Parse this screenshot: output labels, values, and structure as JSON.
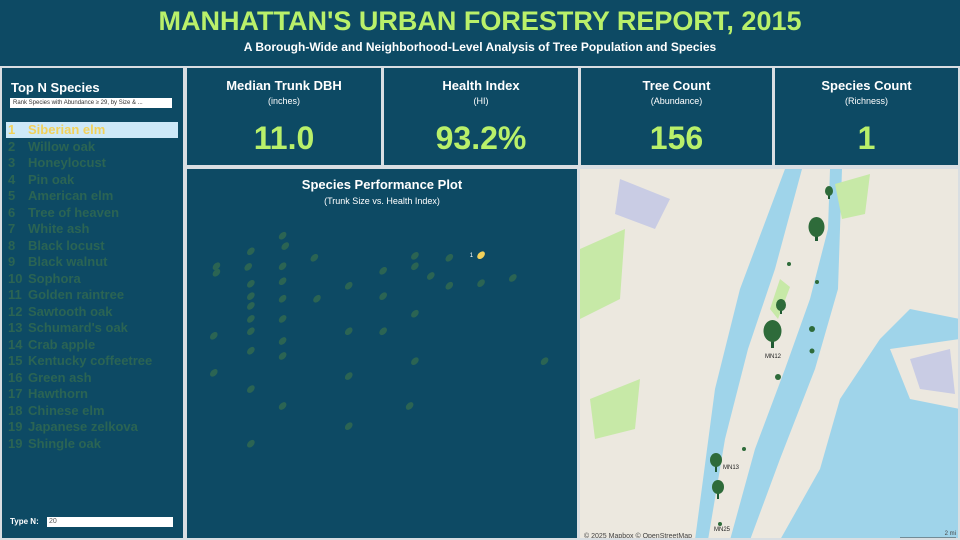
{
  "header": {
    "title": "MANHATTAN'S URBAN FORESTRY REPORT, 2015",
    "subtitle": "A Borough-Wide and Neighborhood-Level Analysis of Tree Population and Species"
  },
  "sidebar": {
    "title": "Top N Species",
    "dropdown": "Rank Species with Abundance ≥ 29, by Size & ...",
    "species": [
      {
        "rank": "1",
        "name": "Siberian elm"
      },
      {
        "rank": "2",
        "name": "Willow oak"
      },
      {
        "rank": "3",
        "name": "Honeylocust"
      },
      {
        "rank": "4",
        "name": "Pin oak"
      },
      {
        "rank": "5",
        "name": "American elm"
      },
      {
        "rank": "6",
        "name": "Tree of heaven"
      },
      {
        "rank": "7",
        "name": "White ash"
      },
      {
        "rank": "8",
        "name": "Black locust"
      },
      {
        "rank": "9",
        "name": "Black walnut"
      },
      {
        "rank": "10",
        "name": "Sophora"
      },
      {
        "rank": "11",
        "name": "Golden raintree"
      },
      {
        "rank": "12",
        "name": "Sawtooth oak"
      },
      {
        "rank": "13",
        "name": "Schumard's oak"
      },
      {
        "rank": "14",
        "name": "Crab apple"
      },
      {
        "rank": "15",
        "name": "Kentucky coffeetree"
      },
      {
        "rank": "16",
        "name": "Green ash"
      },
      {
        "rank": "17",
        "name": "Hawthorn"
      },
      {
        "rank": "18",
        "name": "Chinese elm"
      },
      {
        "rank": "19",
        "name": "Japanese zelkova"
      },
      {
        "rank": "19",
        "name": "Shingle oak"
      }
    ],
    "input_label": "Type N:",
    "input_value": "20"
  },
  "kpis": [
    {
      "title": "Median Trunk DBH",
      "subtitle": "(inches)",
      "value": "11.0"
    },
    {
      "title": "Health Index",
      "subtitle": "(HI)",
      "value": "93.2%"
    },
    {
      "title": "Tree Count",
      "subtitle": "(Abundance)",
      "value": "156"
    },
    {
      "title": "Species Count",
      "subtitle": "(Richness)",
      "value": "1"
    }
  ],
  "chart_data": {
    "type": "scatter",
    "title": "Species Performance Plot",
    "subtitle": "(Trunk Size vs. Health Index)",
    "x": [
      11.0,
      1.0,
      1.0,
      2.3,
      2.2,
      2.3,
      2.3,
      2.3,
      2.3,
      2.3,
      2.3,
      2.3,
      2.3,
      3.5,
      3.6,
      3.5,
      3.5,
      3.5,
      3.5,
      3.5,
      3.5,
      3.5,
      0.9,
      6.0,
      6.0,
      7.3,
      7.3,
      8.3,
      8.5,
      8.5,
      9.1,
      9.8,
      9.8,
      11.0,
      12.2,
      13.4,
      8.5,
      7.3,
      4.7,
      4.8,
      6.0,
      6.0,
      8.5,
      0.9
    ],
    "y": [
      93.2,
      91.5,
      90.5,
      93.8,
      91.4,
      88.8,
      86.9,
      85.4,
      83.4,
      81.5,
      78.5,
      72.6,
      64.2,
      96.2,
      94.6,
      91.5,
      89.2,
      86.5,
      83.4,
      80.0,
      77.7,
      70.0,
      80.8,
      74.6,
      66.9,
      90.8,
      86.9,
      70.0,
      93.1,
      91.5,
      90.0,
      92.8,
      88.5,
      88.9,
      89.7,
      76.9,
      76.9,
      81.5,
      92.8,
      86.5,
      81.5,
      88.5,
      84.2,
      75.1
    ],
    "point_labels": [
      "1",
      null,
      null,
      null,
      null,
      null,
      null,
      null,
      null,
      null,
      null,
      null,
      null,
      null,
      null,
      null,
      null,
      null,
      null,
      null,
      null,
      null,
      null,
      null,
      null,
      null,
      null,
      null,
      null,
      null,
      null,
      null,
      null,
      null,
      null,
      null,
      null,
      null,
      null,
      null,
      null,
      null,
      null,
      null
    ],
    "xlim": [
      0,
      14.55
    ],
    "ylim": [
      50,
      100
    ],
    "color": "#f2d15a",
    "faded_color": "#2b6453"
  },
  "map": {
    "labels": [
      "MN12",
      "MN13",
      "MN25"
    ],
    "attribution": "© 2025 Mapbox © OpenStreetMap",
    "scale": "2 mi"
  }
}
